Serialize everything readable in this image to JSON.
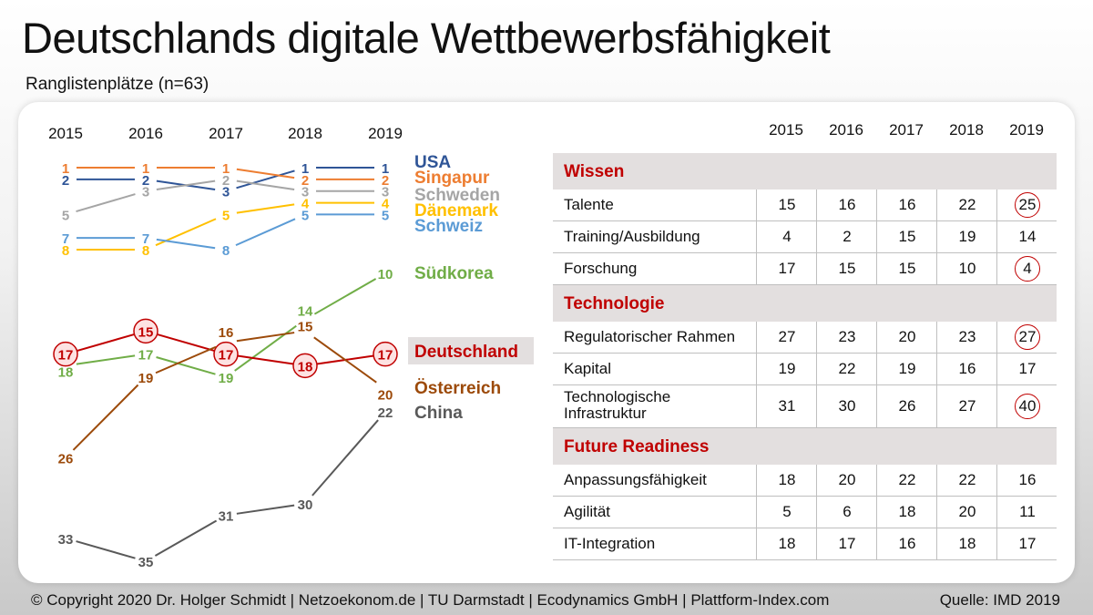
{
  "header": {
    "title": "Deutschlands digitale Wettbewerbsfähigkeit",
    "subtitle": "Ranglistenplätze (n=63)"
  },
  "footer": {
    "copyright": "© Copyright 2020 Dr. Holger Schmidt | Netzoekonom.de | TU Darmstadt |  Ecodynamics GmbH  | Plattform-Index.com",
    "source": "Quelle: IMD 2019"
  },
  "chart_data": [
    {
      "type": "line",
      "x": [
        "2015",
        "2016",
        "2017",
        "2018",
        "2019"
      ],
      "y_axis": "rank (inverted, 1 at top)",
      "series": [
        {
          "name": "USA",
          "values": [
            2,
            2,
            3,
            1,
            1
          ],
          "color": "#2f5597"
        },
        {
          "name": "Singapur",
          "values": [
            1,
            1,
            1,
            2,
            2
          ],
          "color": "#ed7d31"
        },
        {
          "name": "Schweden",
          "values": [
            5,
            3,
            2,
            3,
            3
          ],
          "color": "#a5a5a5"
        },
        {
          "name": "Dänemark",
          "values": [
            8,
            8,
            5,
            4,
            4
          ],
          "color": "#ffc000"
        },
        {
          "name": "Schweiz",
          "values": [
            7,
            7,
            8,
            5,
            5
          ],
          "color": "#5b9bd5"
        },
        {
          "name": "Südkorea",
          "values": [
            18,
            17,
            19,
            14,
            10
          ],
          "color": "#70ad47"
        },
        {
          "name": "Deutschland",
          "values": [
            17,
            15,
            17,
            18,
            17
          ],
          "color": "#c00000",
          "highlight": true
        },
        {
          "name": "Österreich",
          "values": [
            26,
            19,
            16,
            15,
            20
          ],
          "color": "#9c4a0a"
        },
        {
          "name": "China",
          "values": [
            33,
            35,
            31,
            30,
            22
          ],
          "color": "#595959"
        }
      ]
    },
    {
      "type": "table",
      "years": [
        "2015",
        "2016",
        "2017",
        "2018",
        "2019"
      ],
      "sections": [
        {
          "name": "Wissen",
          "rows": [
            {
              "label": "Talente",
              "values": [
                "15",
                "16",
                "16",
                "22",
                "25"
              ],
              "circled": [
                false,
                false,
                false,
                false,
                true
              ]
            },
            {
              "label": "Training/Ausbildung",
              "values": [
                "4",
                "2",
                "15",
                "19",
                "14"
              ],
              "circled": [
                false,
                false,
                false,
                false,
                false
              ]
            },
            {
              "label": "Forschung",
              "values": [
                "17",
                "15",
                "15",
                "10",
                "4"
              ],
              "circled": [
                false,
                false,
                false,
                false,
                true
              ]
            }
          ]
        },
        {
          "name": "Technologie",
          "rows": [
            {
              "label": "Regulatorischer Rahmen",
              "values": [
                "27",
                "23",
                "20",
                "23",
                "27"
              ],
              "circled": [
                false,
                false,
                false,
                false,
                true
              ]
            },
            {
              "label": "Kapital",
              "values": [
                "19",
                "22",
                "19",
                "16",
                "17"
              ],
              "circled": [
                false,
                false,
                false,
                false,
                false
              ]
            },
            {
              "label": "Technologische Infrastruktur",
              "values": [
                "31",
                "30",
                "26",
                "27",
                "40"
              ],
              "circled": [
                false,
                false,
                false,
                false,
                true
              ]
            }
          ]
        },
        {
          "name": "Future Readiness",
          "rows": [
            {
              "label": "Anpassungsfähigkeit",
              "values": [
                "18",
                "20",
                "22",
                "22",
                "16"
              ],
              "circled": [
                false,
                false,
                false,
                false,
                false
              ]
            },
            {
              "label": "Agilität",
              "values": [
                "5",
                "6",
                "18",
                "20",
                "11"
              ],
              "circled": [
                false,
                false,
                false,
                false,
                false
              ]
            },
            {
              "label": "IT-Integration",
              "values": [
                "18",
                "17",
                "16",
                "18",
                "17"
              ],
              "circled": [
                false,
                false,
                false,
                false,
                false
              ]
            }
          ]
        }
      ]
    }
  ]
}
